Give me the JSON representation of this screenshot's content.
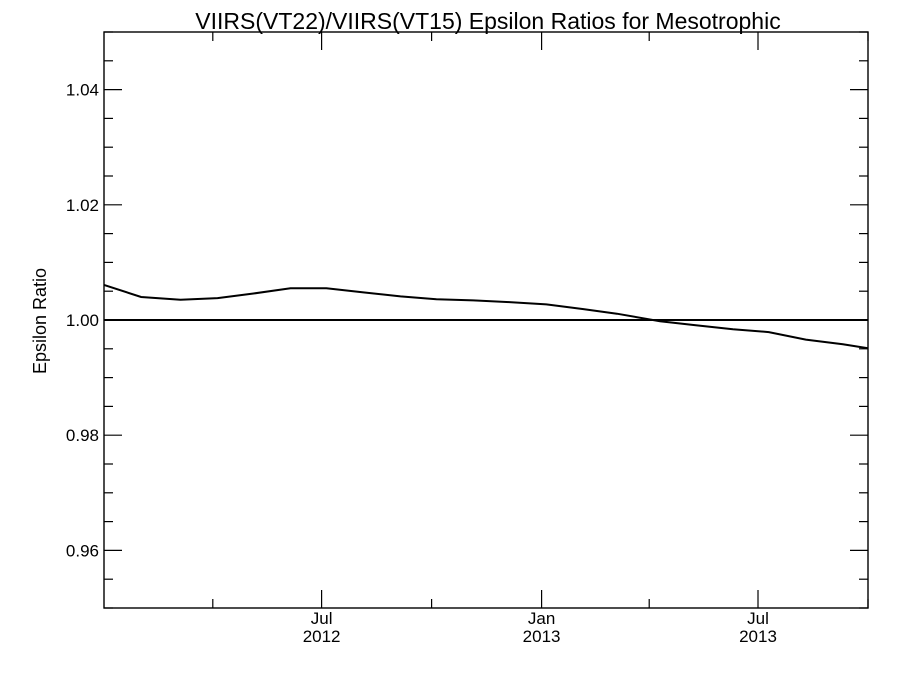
{
  "chart_data": {
    "type": "line",
    "title": "VIIRS(VT22)/VIIRS(VT15)  Epsilon Ratios for Mesotrophic",
    "ylabel": "Epsilon Ratio",
    "xlabel": "",
    "ylim": [
      0.95,
      1.05
    ],
    "xlim": [
      "2012-01-01",
      "2013-10-01"
    ],
    "y_ticks": [
      {
        "value": 0.96,
        "label": "0.96"
      },
      {
        "value": 0.98,
        "label": "0.98"
      },
      {
        "value": 1.0,
        "label": "1.00"
      },
      {
        "value": 1.02,
        "label": "1.02"
      },
      {
        "value": 1.04,
        "label": "1.04"
      }
    ],
    "x_major_ticks": [
      {
        "date": "2012-07-01",
        "label": "Jul",
        "sublabel": "2012"
      },
      {
        "date": "2013-01-01",
        "label": "Jan",
        "sublabel": "2013"
      },
      {
        "date": "2013-07-01",
        "label": "Jul",
        "sublabel": "2013"
      }
    ],
    "x_minor_ticks": [
      "2012-04-01",
      "2012-10-01",
      "2013-04-01",
      "2013-10-01"
    ],
    "reference_line": 1.0,
    "series": [
      {
        "x": [
          "2012-01-01",
          "2012-02-01",
          "2012-03-05",
          "2012-04-05",
          "2012-05-05",
          "2012-06-05",
          "2012-07-05",
          "2012-08-05",
          "2012-09-05",
          "2012-10-05",
          "2012-11-05",
          "2012-12-05",
          "2013-01-05",
          "2013-02-05",
          "2013-03-05",
          "2013-04-10",
          "2013-05-10",
          "2013-06-10",
          "2013-07-10",
          "2013-08-10",
          "2013-09-10",
          "2013-10-01"
        ],
        "y": [
          1.0061,
          1.004,
          1.0035,
          1.0038,
          1.0046,
          1.0055,
          1.0055,
          1.0048,
          1.0041,
          1.0036,
          1.0034,
          1.0031,
          1.0027,
          1.0019,
          1.0011,
          0.9998,
          0.9991,
          0.9984,
          0.9979,
          0.9966,
          0.9958,
          0.9951
        ]
      }
    ],
    "grid": false,
    "frame_color": "#000000",
    "line_color": "#000000"
  }
}
